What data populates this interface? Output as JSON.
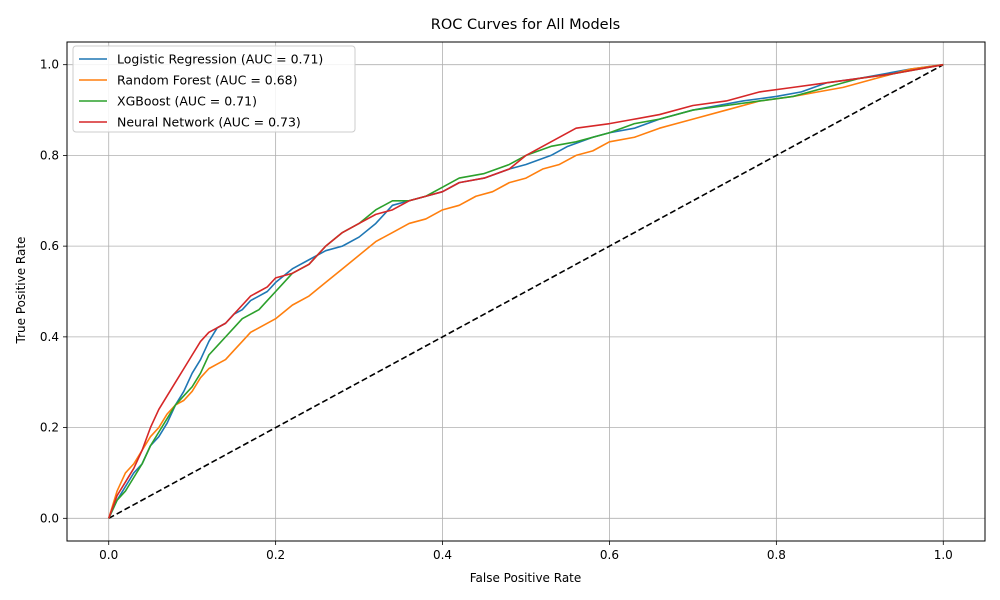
{
  "chart_data": {
    "type": "line",
    "title": "ROC Curves for All Models",
    "xlabel": "False Positive Rate",
    "ylabel": "True Positive Rate",
    "xlim": [
      -0.05,
      1.05
    ],
    "ylim": [
      -0.05,
      1.05
    ],
    "xticks": [
      "0.0",
      "0.2",
      "0.4",
      "0.6",
      "0.8",
      "1.0"
    ],
    "yticks": [
      "0.0",
      "0.2",
      "0.4",
      "0.6",
      "0.8",
      "1.0"
    ],
    "grid": true,
    "legend_position": "upper-left",
    "series": [
      {
        "name": "Logistic Regression (AUC = 0.71)",
        "color": "#1f77b4",
        "x": [
          0,
          0.01,
          0.02,
          0.03,
          0.04,
          0.05,
          0.06,
          0.07,
          0.08,
          0.09,
          0.1,
          0.11,
          0.12,
          0.13,
          0.14,
          0.15,
          0.16,
          0.17,
          0.18,
          0.19,
          0.2,
          0.22,
          0.24,
          0.26,
          0.28,
          0.3,
          0.32,
          0.34,
          0.36,
          0.38,
          0.4,
          0.42,
          0.45,
          0.48,
          0.5,
          0.53,
          0.55,
          0.58,
          0.6,
          0.63,
          0.66,
          0.7,
          0.73,
          0.76,
          0.8,
          0.83,
          0.86,
          0.9,
          0.93,
          0.96,
          1.0
        ],
        "y": [
          0,
          0.04,
          0.07,
          0.1,
          0.12,
          0.16,
          0.18,
          0.21,
          0.25,
          0.28,
          0.32,
          0.35,
          0.39,
          0.42,
          0.43,
          0.45,
          0.46,
          0.48,
          0.49,
          0.5,
          0.52,
          0.55,
          0.57,
          0.59,
          0.6,
          0.62,
          0.65,
          0.69,
          0.7,
          0.71,
          0.72,
          0.74,
          0.75,
          0.77,
          0.78,
          0.8,
          0.82,
          0.84,
          0.85,
          0.86,
          0.88,
          0.9,
          0.91,
          0.92,
          0.93,
          0.94,
          0.96,
          0.97,
          0.98,
          0.99,
          1.0
        ]
      },
      {
        "name": "Random Forest (AUC = 0.68)",
        "color": "#ff7f0e",
        "x": [
          0,
          0.01,
          0.02,
          0.03,
          0.04,
          0.05,
          0.06,
          0.07,
          0.08,
          0.09,
          0.1,
          0.11,
          0.12,
          0.13,
          0.14,
          0.15,
          0.16,
          0.17,
          0.18,
          0.2,
          0.22,
          0.24,
          0.26,
          0.28,
          0.3,
          0.32,
          0.34,
          0.36,
          0.38,
          0.4,
          0.42,
          0.44,
          0.46,
          0.48,
          0.5,
          0.52,
          0.54,
          0.56,
          0.58,
          0.6,
          0.63,
          0.66,
          0.7,
          0.74,
          0.78,
          0.82,
          0.85,
          0.88,
          0.92,
          0.96,
          1.0
        ],
        "y": [
          0,
          0.06,
          0.1,
          0.12,
          0.15,
          0.18,
          0.2,
          0.23,
          0.25,
          0.26,
          0.28,
          0.31,
          0.33,
          0.34,
          0.35,
          0.37,
          0.39,
          0.41,
          0.42,
          0.44,
          0.47,
          0.49,
          0.52,
          0.55,
          0.58,
          0.61,
          0.63,
          0.65,
          0.66,
          0.68,
          0.69,
          0.71,
          0.72,
          0.74,
          0.75,
          0.77,
          0.78,
          0.8,
          0.81,
          0.83,
          0.84,
          0.86,
          0.88,
          0.9,
          0.92,
          0.93,
          0.94,
          0.95,
          0.97,
          0.99,
          1.0
        ]
      },
      {
        "name": "XGBoost (AUC = 0.71)",
        "color": "#2ca02c",
        "x": [
          0,
          0.01,
          0.02,
          0.03,
          0.04,
          0.05,
          0.06,
          0.07,
          0.08,
          0.09,
          0.1,
          0.11,
          0.12,
          0.13,
          0.14,
          0.15,
          0.16,
          0.17,
          0.18,
          0.19,
          0.2,
          0.21,
          0.22,
          0.24,
          0.26,
          0.28,
          0.3,
          0.32,
          0.34,
          0.36,
          0.38,
          0.4,
          0.42,
          0.45,
          0.48,
          0.5,
          0.53,
          0.56,
          0.6,
          0.63,
          0.66,
          0.7,
          0.74,
          0.78,
          0.82,
          0.86,
          0.9,
          0.94,
          0.97,
          1.0
        ],
        "y": [
          0,
          0.04,
          0.06,
          0.09,
          0.12,
          0.16,
          0.19,
          0.22,
          0.25,
          0.27,
          0.29,
          0.32,
          0.36,
          0.38,
          0.4,
          0.42,
          0.44,
          0.45,
          0.46,
          0.48,
          0.5,
          0.52,
          0.54,
          0.56,
          0.6,
          0.63,
          0.65,
          0.68,
          0.7,
          0.7,
          0.71,
          0.73,
          0.75,
          0.76,
          0.78,
          0.8,
          0.82,
          0.83,
          0.85,
          0.87,
          0.88,
          0.9,
          0.91,
          0.92,
          0.93,
          0.95,
          0.97,
          0.98,
          0.99,
          1.0
        ]
      },
      {
        "name": "Neural Network (AUC = 0.73)",
        "color": "#d62728",
        "x": [
          0,
          0.01,
          0.02,
          0.03,
          0.04,
          0.05,
          0.06,
          0.07,
          0.08,
          0.09,
          0.1,
          0.11,
          0.12,
          0.13,
          0.14,
          0.15,
          0.16,
          0.17,
          0.18,
          0.19,
          0.2,
          0.22,
          0.24,
          0.26,
          0.28,
          0.3,
          0.32,
          0.34,
          0.36,
          0.38,
          0.4,
          0.42,
          0.45,
          0.48,
          0.5,
          0.53,
          0.56,
          0.6,
          0.63,
          0.66,
          0.7,
          0.74,
          0.78,
          0.82,
          0.86,
          0.9,
          0.94,
          0.97,
          1.0
        ],
        "y": [
          0,
          0.05,
          0.08,
          0.11,
          0.15,
          0.2,
          0.24,
          0.27,
          0.3,
          0.33,
          0.36,
          0.39,
          0.41,
          0.42,
          0.43,
          0.45,
          0.47,
          0.49,
          0.5,
          0.51,
          0.53,
          0.54,
          0.56,
          0.6,
          0.63,
          0.65,
          0.67,
          0.68,
          0.7,
          0.71,
          0.72,
          0.74,
          0.75,
          0.77,
          0.8,
          0.83,
          0.86,
          0.87,
          0.88,
          0.89,
          0.91,
          0.92,
          0.94,
          0.95,
          0.96,
          0.97,
          0.98,
          0.99,
          1.0
        ]
      }
    ],
    "reference_line": {
      "color": "#000000",
      "style": "dashed",
      "x": [
        0,
        1
      ],
      "y": [
        0,
        1
      ]
    }
  }
}
